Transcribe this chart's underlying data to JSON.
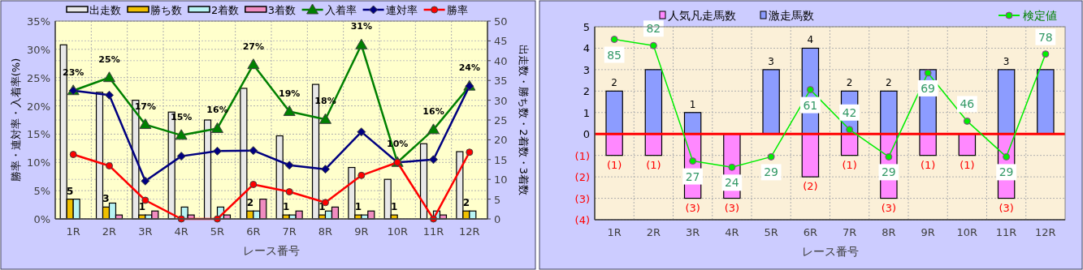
{
  "chart_data": [
    {
      "type": "bar",
      "categories": [
        "1R",
        "2R",
        "3R",
        "4R",
        "5R",
        "6R",
        "7R",
        "8R",
        "9R",
        "10R",
        "11R",
        "12R"
      ],
      "xlabel": "レース番号",
      "ylabel": "勝率・連対率・入着率(%)",
      "y2label": "出走数・勝ち数・2着数・3着数",
      "ylim": [
        0,
        35
      ],
      "yticks": [
        {
          "value": 0,
          "label": "0%"
        },
        {
          "value": 5,
          "label": "5%"
        },
        {
          "value": 10,
          "label": "10%"
        },
        {
          "value": 15,
          "label": "15%"
        },
        {
          "value": 20,
          "label": "20%"
        },
        {
          "value": 25,
          "label": "25%"
        },
        {
          "value": 30,
          "label": "30%"
        },
        {
          "value": 35,
          "label": "35%"
        }
      ],
      "y2lim": [
        0,
        50
      ],
      "y2ticks": [
        0,
        5,
        10,
        15,
        20,
        25,
        30,
        35,
        40,
        45,
        50
      ],
      "grid": true,
      "legend": "top",
      "series": [
        {
          "name": "出走数",
          "type": "bar",
          "axis": "y2",
          "color": "#e8e8e8",
          "values": [
            44,
            32,
            30,
            27,
            25,
            33,
            21,
            34,
            13,
            10,
            19,
            17
          ]
        },
        {
          "name": "勝ち数",
          "type": "bar",
          "axis": "y2",
          "color": "#f0c000",
          "values": [
            5,
            3,
            1,
            0,
            0,
            2,
            1,
            1,
            1,
            1,
            0,
            2
          ],
          "value_labels": [
            "5",
            "3",
            "1",
            null,
            null,
            "2",
            "1",
            "1",
            "1",
            "1",
            null,
            "2"
          ]
        },
        {
          "name": "2着数",
          "type": "bar",
          "axis": "y2",
          "color": "#b8f4f4",
          "values": [
            5,
            4,
            1,
            3,
            3,
            2,
            1,
            2,
            1,
            0,
            2,
            2
          ]
        },
        {
          "name": "3着数",
          "type": "bar",
          "axis": "y2",
          "color": "#f08cc0",
          "values": [
            0,
            1,
            2,
            1,
            1,
            5,
            2,
            3,
            2,
            0,
            1,
            0
          ]
        },
        {
          "name": "入着率",
          "type": "line",
          "color": "#008000",
          "marker": "triangle",
          "values": [
            22.7,
            25,
            16.7,
            14.8,
            16,
            27.3,
            19,
            17.6,
            30.8,
            10,
            15.8,
            23.5
          ],
          "value_labels": [
            "23%",
            "25%",
            "17%",
            "15%",
            "16%",
            "27%",
            "19%",
            "18%",
            "31%",
            "10%",
            "16%",
            "24%"
          ]
        },
        {
          "name": "連対率",
          "type": "line",
          "color": "#000080",
          "marker": "diamond",
          "values": [
            22.7,
            21.9,
            6.7,
            11.1,
            12,
            12.1,
            9.5,
            8.8,
            15.4,
            10,
            10.5,
            23.5
          ]
        },
        {
          "name": "勝率",
          "type": "line",
          "color": "#ff0000",
          "marker": "circle",
          "values": [
            11.4,
            9.4,
            3.3,
            0,
            0,
            6.1,
            4.8,
            2.9,
            7.7,
            10,
            0,
            11.8
          ]
        }
      ]
    },
    {
      "type": "bar",
      "categories": [
        "1R",
        "2R",
        "3R",
        "4R",
        "5R",
        "6R",
        "7R",
        "8R",
        "9R",
        "10R",
        "11R",
        "12R"
      ],
      "xlabel": "レース番号",
      "stacked": true,
      "ylim": [
        -4,
        5
      ],
      "yticks": [
        {
          "value": -4,
          "label": "(4)"
        },
        {
          "value": -3,
          "label": "(3)"
        },
        {
          "value": -2,
          "label": "(2)"
        },
        {
          "value": -1,
          "label": "(1)"
        },
        0,
        1,
        2,
        3,
        4,
        5
      ],
      "y2lim": [
        -1,
        91
      ],
      "grid": true,
      "legend": "top",
      "ref_lines": [
        {
          "axis": "y",
          "value": 0,
          "color": "#ff0000"
        }
      ],
      "series": [
        {
          "name": "人気凡走馬数",
          "type": "bar",
          "color": "#ff88ff",
          "values": [
            -1,
            -1,
            -3,
            -3,
            0,
            -2,
            -1,
            -3,
            -1,
            -1,
            -3,
            0
          ],
          "value_labels": [
            "(1)",
            "(1)",
            "(3)",
            "(3)",
            null,
            "(2)",
            "(1)",
            "(3)",
            "(1)",
            "(1)",
            "(3)",
            null
          ]
        },
        {
          "name": "激走馬数",
          "type": "bar",
          "color": "#8c9cff",
          "values": [
            2,
            3,
            1,
            0,
            3,
            4,
            2,
            2,
            3,
            0,
            3,
            3
          ],
          "value_labels": [
            "2",
            null,
            "1",
            null,
            "3",
            "4",
            "2",
            "2",
            null,
            null,
            "3",
            null
          ]
        },
        {
          "name": "検定値",
          "type": "line",
          "axis": "y2",
          "color": "#00ee00",
          "marker": "circle",
          "values": [
            85,
            82,
            27,
            24,
            29,
            61,
            42,
            29,
            69,
            46,
            29,
            78
          ],
          "value_labels": [
            "85",
            "82",
            "27",
            "24",
            "29",
            "61",
            "42",
            "29",
            "69",
            "46",
            "29",
            "78"
          ]
        }
      ]
    }
  ]
}
